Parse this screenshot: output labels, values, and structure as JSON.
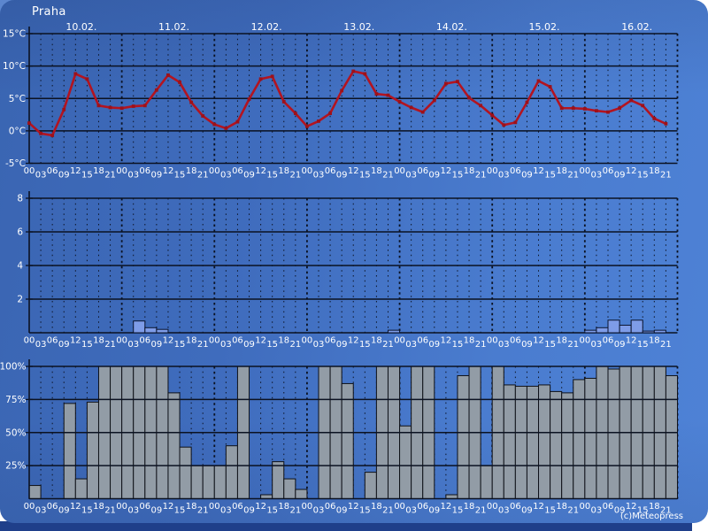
{
  "window": {
    "title": "Praha",
    "copyright": "(c)Meteopress"
  },
  "colors": {
    "background_left": "#3a65b2",
    "background_right": "#4e82d6",
    "bottom_band": "#1f3f8a",
    "grid": "#0b1222",
    "text": "#ffffff",
    "temperature_line": "#b31420",
    "temperature_marker": "#9e1119",
    "precip_bar_fill": "#7e9ce8",
    "precip_bar_stroke": "#0a1530",
    "cloud_bar_fill": "#929ca6",
    "cloud_bar_stroke": "#0e1118"
  },
  "chart_data": {
    "type": "meteogram",
    "location": "Praha",
    "x": {
      "dates": [
        "10.02.",
        "11.02.",
        "12.02.",
        "13.02.",
        "14.02.",
        "15.02.",
        "16.02."
      ],
      "times_per_day": [
        "00",
        "03",
        "06",
        "09",
        "12",
        "15",
        "18",
        "21"
      ]
    },
    "panels": [
      {
        "id": "temperature",
        "type": "line",
        "unit": "°C",
        "axis_tick_labels": [
          "15°C",
          "10°C",
          "5°C",
          "0°C",
          "-5°C"
        ],
        "axis_tick_values": [
          15,
          10,
          5,
          0,
          -5
        ],
        "ylim": [
          -5,
          15
        ],
        "grid": "on",
        "line_color": "#b31420"
      },
      {
        "id": "precipitation",
        "type": "bar",
        "unit": "mm",
        "axis_tick_labels": [
          "8",
          "6",
          "4",
          "2"
        ],
        "axis_tick_values": [
          8,
          6,
          4,
          2
        ],
        "ylim": [
          0,
          8
        ],
        "grid": "on",
        "bar_color": "#7e9ce8"
      },
      {
        "id": "cloud_cover",
        "type": "bar",
        "unit": "%",
        "axis_tick_labels": [
          "100%",
          "75%",
          "50%",
          "25%"
        ],
        "axis_tick_values": [
          100,
          75,
          50,
          25
        ],
        "ylim": [
          0,
          100
        ],
        "grid": "on",
        "bar_color": "#929ca6"
      }
    ],
    "days": [
      {
        "date": "10.02.",
        "temperature_c": [
          1.2,
          -0.4,
          -0.7,
          3.3,
          8.8,
          8.0,
          3.9,
          3.6
        ],
        "precipitation": [
          0,
          0,
          0,
          0,
          0,
          0,
          0,
          0
        ],
        "cloud_percent": [
          10,
          0,
          0,
          72,
          15,
          73,
          100,
          100
        ]
      },
      {
        "date": "11.02.",
        "temperature_c": [
          3.5,
          3.8,
          3.9,
          6.3,
          8.6,
          7.5,
          4.4,
          2.3
        ],
        "precipitation": [
          0,
          0.7,
          0.3,
          0.2,
          0,
          0,
          0,
          0
        ],
        "cloud_percent": [
          100,
          100,
          100,
          100,
          80,
          39,
          25,
          25
        ]
      },
      {
        "date": "12.02.",
        "temperature_c": [
          1.0,
          0.4,
          1.4,
          4.9,
          8.0,
          8.4,
          4.5,
          2.7
        ],
        "precipitation": [
          0,
          0,
          0,
          0,
          0,
          0,
          0,
          0
        ],
        "cloud_percent": [
          25,
          40,
          100,
          0,
          3,
          28,
          15,
          7
        ]
      },
      {
        "date": "13.02.",
        "temperature_c": [
          0.7,
          1.5,
          2.7,
          6.2,
          9.2,
          8.8,
          5.7,
          5.5
        ],
        "precipitation": [
          0,
          0,
          0,
          0,
          0,
          0,
          0,
          0.15
        ],
        "cloud_percent": [
          0,
          100,
          100,
          87,
          0,
          20,
          100,
          100
        ]
      },
      {
        "date": "14.02.",
        "temperature_c": [
          4.5,
          3.6,
          2.9,
          4.7,
          7.3,
          7.6,
          5.1,
          3.9
        ],
        "precipitation": [
          0,
          0,
          0,
          0,
          0,
          0,
          0,
          0
        ],
        "cloud_percent": [
          55,
          100,
          100,
          0,
          3,
          93,
          100,
          25
        ]
      },
      {
        "date": "15.02.",
        "temperature_c": [
          2.4,
          0.9,
          1.3,
          4.4,
          7.7,
          6.8,
          3.5,
          3.5
        ],
        "precipitation": [
          0,
          0,
          0,
          0,
          0,
          0,
          0,
          0
        ],
        "cloud_percent": [
          100,
          86,
          85,
          85,
          86,
          81,
          80,
          90
        ]
      },
      {
        "date": "16.02.",
        "temperature_c": [
          3.4,
          3.1,
          2.9,
          3.5,
          4.7,
          3.9,
          1.9,
          1.1
        ],
        "precipitation": [
          0.15,
          0.3,
          0.75,
          0.45,
          0.75,
          0.1,
          0.15,
          0
        ],
        "cloud_percent": [
          91,
          100,
          98,
          100,
          100,
          100,
          100,
          93
        ]
      }
    ]
  }
}
